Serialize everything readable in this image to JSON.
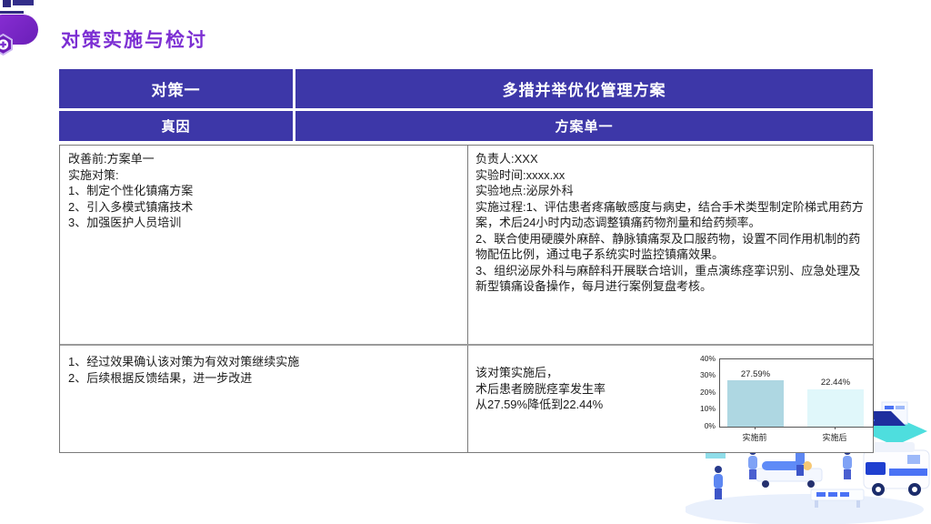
{
  "slide": {
    "title": "对策实施与检讨"
  },
  "header": {
    "row1": {
      "left": "对策一",
      "right": "多措并举优化管理方案"
    },
    "row2": {
      "left": "真因",
      "right": "方案单一"
    }
  },
  "cells": {
    "before": {
      "lines": [
        "改善前:方案单一",
        "实施对策:",
        "1、制定个性化镇痛方案",
        "2、引入多模式镇痛技术",
        "3、加强医护人员培训"
      ]
    },
    "implementation": {
      "lines": [
        "负责人:XXX",
        "实验时间:xxxx.xx",
        "实验地点:泌尿外科",
        "实施过程:1、评估患者疼痛敏感度与病史，结合手术类型制定阶梯式用药方案，术后24小时内动态调整镇痛药物剂量和给药频率。",
        "2、联合使用硬膜外麻醉、静脉镇痛泵及口服药物，设置不同作用机制的药物配伍比例，通过电子系统实时监控镇痛效果。",
        "3、组织泌尿外科与麻醉科开展联合培训，重点演练痉挛识别、应急处理及新型镇痛设备操作，每月进行案例复盘考核。"
      ]
    },
    "review": {
      "lines": [
        "1、经过效果确认该对策为有效对策继续实施",
        "2、后续根据反馈结果，进一步改进"
      ]
    },
    "effect": {
      "lines": [
        "该对策实施后，",
        "术后患者膀胱痉挛发生率",
        "从27.59%降低到22.44%"
      ]
    }
  },
  "chart_data": {
    "type": "bar",
    "categories": [
      "实施前",
      "实施后"
    ],
    "values": [
      27.59,
      22.44
    ],
    "value_labels": [
      "27.59%",
      "22.44%"
    ],
    "y_ticks": [
      "40%",
      "30%",
      "20%",
      "10%",
      "0%"
    ],
    "ylim": [
      0,
      40
    ],
    "bar_colors": [
      "#aed7e2",
      "#e0f7fa"
    ],
    "title": "",
    "xlabel": "",
    "ylabel": "",
    "grid": false,
    "legend": false
  },
  "colors": {
    "header_bg": "#3d37a8",
    "title_text": "#7c2fd3",
    "logo_purple": "#7a2fd0",
    "table_border": "#7a7a7a",
    "bar_before": "#aed7e2",
    "bar_after": "#e0f7fa",
    "illustration_blue": "#4a72f5",
    "illustration_teal": "#2fd8d8"
  },
  "icons": {
    "logo": "medical-plus-hexagon"
  }
}
